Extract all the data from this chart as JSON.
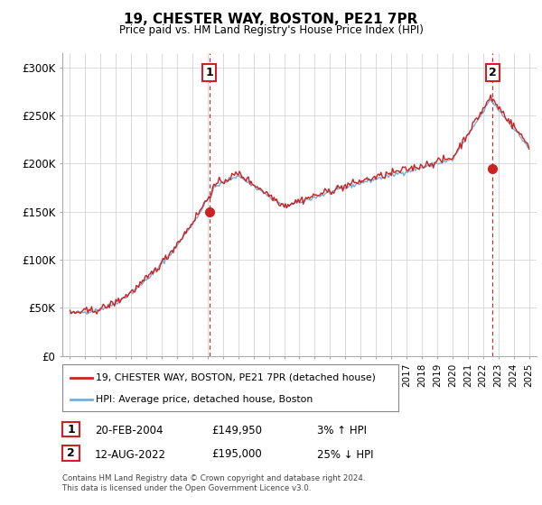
{
  "title": "19, CHESTER WAY, BOSTON, PE21 7PR",
  "subtitle": "Price paid vs. HM Land Registry's House Price Index (HPI)",
  "ylabel_ticks": [
    "£0",
    "£50K",
    "£100K",
    "£150K",
    "£200K",
    "£250K",
    "£300K"
  ],
  "ytick_values": [
    0,
    50000,
    100000,
    150000,
    200000,
    250000,
    300000
  ],
  "ylim": [
    0,
    315000
  ],
  "xlim_start": 1994.5,
  "xlim_end": 2025.5,
  "hpi_color": "#7aadd4",
  "price_color": "#cc2222",
  "sale1_label": "1",
  "sale1_date": "20-FEB-2004",
  "sale1_price": "£149,950",
  "sale1_hpi": "3% ↑ HPI",
  "sale1_x": 2004.12,
  "sale1_y": 149950,
  "sale2_label": "2",
  "sale2_date": "12-AUG-2022",
  "sale2_price": "£195,000",
  "sale2_hpi": "25% ↓ HPI",
  "sale2_x": 2022.62,
  "sale2_y": 195000,
  "legend_label1": "19, CHESTER WAY, BOSTON, PE21 7PR (detached house)",
  "legend_label2": "HPI: Average price, detached house, Boston",
  "footer": "Contains HM Land Registry data © Crown copyright and database right 2024.\nThis data is licensed under the Open Government Licence v3.0.",
  "background_color": "#ffffff",
  "grid_color": "#cccccc"
}
